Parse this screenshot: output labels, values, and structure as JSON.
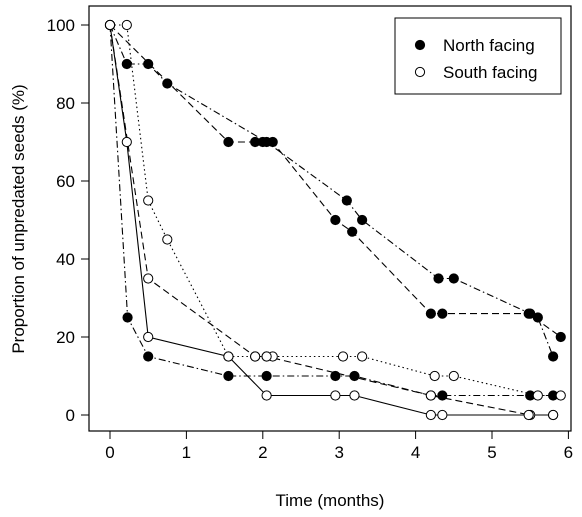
{
  "chart_data": {
    "type": "line",
    "xlabel": "Time (months)",
    "ylabel": "Proportion of unpredated seeds (%)",
    "xlim": [
      0,
      6
    ],
    "ylim": [
      0,
      100
    ],
    "xticks": [
      0,
      1,
      2,
      3,
      4,
      5,
      6
    ],
    "yticks": [
      0,
      20,
      40,
      60,
      80,
      100
    ],
    "grid": false,
    "legend_position": "top-right",
    "legend": [
      {
        "label": "North facing",
        "marker": "filled-circle"
      },
      {
        "label": "South facing",
        "marker": "open-circle"
      }
    ],
    "series": [
      {
        "group": "North facing",
        "linestyle": "dashdot",
        "points": [
          [
            0,
            100
          ],
          [
            0.22,
            90
          ],
          [
            0.5,
            90
          ],
          [
            0.75,
            85
          ],
          [
            2.05,
            70
          ],
          [
            3.1,
            55
          ],
          [
            3.3,
            50
          ],
          [
            4.3,
            35
          ],
          [
            4.5,
            35
          ],
          [
            5.5,
            26
          ],
          [
            5.6,
            25
          ],
          [
            5.8,
            15
          ]
        ]
      },
      {
        "group": "North facing",
        "linestyle": "dashed",
        "points": [
          [
            0,
            100
          ],
          [
            1.55,
            70
          ],
          [
            1.9,
            70
          ],
          [
            2.0,
            70
          ],
          [
            2.13,
            70
          ],
          [
            2.95,
            50
          ],
          [
            3.17,
            47
          ],
          [
            4.2,
            26
          ],
          [
            4.35,
            26
          ],
          [
            5.48,
            26
          ],
          [
            5.9,
            20
          ]
        ]
      },
      {
        "group": "North facing",
        "linestyle": "dashdot",
        "points": [
          [
            0,
            100
          ],
          [
            0.23,
            25
          ],
          [
            0.5,
            15
          ],
          [
            1.55,
            10
          ],
          [
            2.05,
            10
          ],
          [
            2.95,
            10
          ],
          [
            3.2,
            10
          ],
          [
            4.2,
            5
          ],
          [
            4.35,
            5
          ],
          [
            5.5,
            5
          ],
          [
            5.8,
            5
          ]
        ]
      },
      {
        "group": "South facing",
        "linestyle": "dotted",
        "points": [
          [
            0,
            100
          ],
          [
            0.22,
            100
          ],
          [
            0.5,
            55
          ],
          [
            0.75,
            45
          ],
          [
            1.55,
            15
          ],
          [
            1.9,
            15
          ],
          [
            2.05,
            15
          ],
          [
            2.13,
            15
          ],
          [
            3.05,
            15
          ],
          [
            3.3,
            15
          ],
          [
            4.25,
            10
          ],
          [
            4.5,
            10
          ],
          [
            5.6,
            5
          ],
          [
            5.9,
            5
          ]
        ]
      },
      {
        "group": "South facing",
        "linestyle": "dashed",
        "points": [
          [
            0,
            100
          ],
          [
            0.5,
            35
          ],
          [
            1.9,
            15
          ],
          [
            2.05,
            15
          ],
          [
            4.2,
            5
          ],
          [
            5.5,
            0
          ],
          [
            5.8,
            0
          ]
        ]
      },
      {
        "group": "South facing",
        "linestyle": "solid",
        "points": [
          [
            0,
            100
          ],
          [
            0.22,
            70
          ],
          [
            0.5,
            20
          ],
          [
            1.55,
            15
          ],
          [
            2.05,
            5
          ],
          [
            2.95,
            5
          ],
          [
            3.2,
            5
          ],
          [
            4.2,
            0
          ],
          [
            4.35,
            0
          ],
          [
            5.48,
            0
          ],
          [
            5.8,
            0
          ]
        ]
      }
    ]
  }
}
